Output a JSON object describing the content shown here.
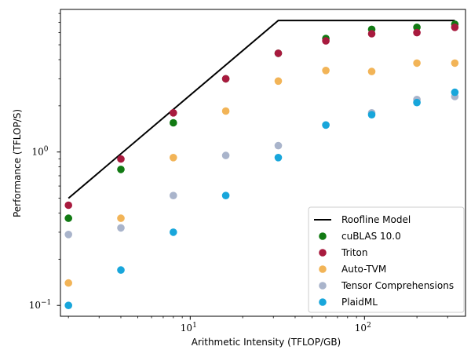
{
  "chart_data": {
    "type": "scatter",
    "title": "",
    "xlabel": "Arithmetic Intensity (TFLOP/GB)",
    "ylabel": "Performance (TFLOP/S)",
    "x_scale": "log",
    "y_scale": "log",
    "xlim": [
      1.8,
      380
    ],
    "ylim": [
      0.085,
      8.5
    ],
    "x_major_ticks": [
      {
        "value": 10,
        "base": "10",
        "exp": "1"
      },
      {
        "value": 100,
        "base": "10",
        "exp": "2"
      }
    ],
    "y_major_ticks": [
      {
        "value": 0.1,
        "base": "10",
        "exp": "−1"
      },
      {
        "value": 1,
        "base": "10",
        "exp": "0"
      }
    ],
    "grid": false,
    "legend_position": "lower right",
    "roofline": {
      "name": "Roofline Model",
      "color": "#000000",
      "x": [
        2,
        32,
        330
      ],
      "y": [
        0.5,
        7.2,
        7.2
      ]
    },
    "series": [
      {
        "name": "cuBLAS 10.0",
        "color": "#117a13",
        "x": [
          2,
          4,
          8,
          16,
          32,
          60,
          110,
          200,
          330
        ],
        "y": [
          0.37,
          0.77,
          1.55,
          3.0,
          4.4,
          5.5,
          6.3,
          6.5,
          6.8
        ]
      },
      {
        "name": "Triton",
        "color": "#a81a3e",
        "x": [
          2,
          4,
          8,
          16,
          32,
          60,
          110,
          200,
          330
        ],
        "y": [
          0.45,
          0.9,
          1.8,
          3.0,
          4.4,
          5.3,
          5.9,
          6.0,
          6.5
        ]
      },
      {
        "name": "Auto-TVM",
        "color": "#f2b457",
        "x": [
          2,
          4,
          8,
          16,
          32,
          60,
          110,
          200,
          330
        ],
        "y": [
          0.14,
          0.37,
          0.92,
          1.85,
          2.9,
          3.4,
          3.35,
          3.8,
          3.8
        ]
      },
      {
        "name": "Tensor Comprehensions",
        "color": "#a9b4cb",
        "x": [
          2,
          4,
          8,
          16,
          32,
          60,
          110,
          200,
          330
        ],
        "y": [
          0.29,
          0.32,
          0.52,
          0.95,
          1.1,
          1.5,
          1.8,
          2.2,
          2.3
        ]
      },
      {
        "name": "PlaidML",
        "color": "#18a6db",
        "x": [
          2,
          4,
          8,
          16,
          32,
          60,
          110,
          200,
          330
        ],
        "y": [
          0.1,
          0.17,
          0.3,
          0.52,
          0.92,
          1.5,
          1.75,
          2.1,
          2.45
        ]
      }
    ]
  }
}
